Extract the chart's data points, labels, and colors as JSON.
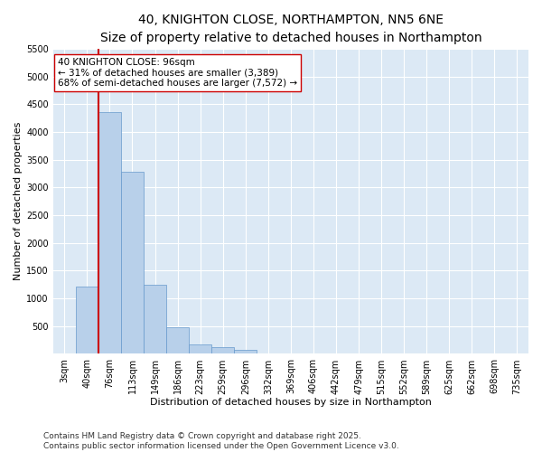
{
  "title_line1": "40, KNIGHTON CLOSE, NORTHAMPTON, NN5 6NE",
  "title_line2": "Size of property relative to detached houses in Northampton",
  "xlabel": "Distribution of detached houses by size in Northampton",
  "ylabel": "Number of detached properties",
  "categories": [
    "3sqm",
    "40sqm",
    "76sqm",
    "113sqm",
    "149sqm",
    "186sqm",
    "223sqm",
    "259sqm",
    "296sqm",
    "332sqm",
    "369sqm",
    "406sqm",
    "442sqm",
    "479sqm",
    "515sqm",
    "552sqm",
    "589sqm",
    "625sqm",
    "662sqm",
    "698sqm",
    "735sqm"
  ],
  "values": [
    0,
    1220,
    4350,
    3280,
    1240,
    480,
    175,
    115,
    65,
    0,
    0,
    0,
    0,
    0,
    0,
    0,
    0,
    0,
    0,
    0,
    0
  ],
  "bar_color": "#b8d0ea",
  "bar_edgecolor": "#6699cc",
  "vline_color": "#cc0000",
  "vline_x": 1.5,
  "annotation_text": "40 KNIGHTON CLOSE: 96sqm\n← 31% of detached houses are smaller (3,389)\n68% of semi-detached houses are larger (7,572) →",
  "annotation_box_facecolor": "#ffffff",
  "annotation_box_edgecolor": "#cc0000",
  "ylim": [
    0,
    5500
  ],
  "yticks": [
    0,
    500,
    1000,
    1500,
    2000,
    2500,
    3000,
    3500,
    4000,
    4500,
    5000,
    5500
  ],
  "background_color": "#dce9f5",
  "footer_line1": "Contains HM Land Registry data © Crown copyright and database right 2025.",
  "footer_line2": "Contains public sector information licensed under the Open Government Licence v3.0.",
  "title_fontsize": 10,
  "subtitle_fontsize": 8.5,
  "axis_label_fontsize": 8,
  "tick_fontsize": 7,
  "annotation_fontsize": 7.5,
  "footer_fontsize": 6.5
}
